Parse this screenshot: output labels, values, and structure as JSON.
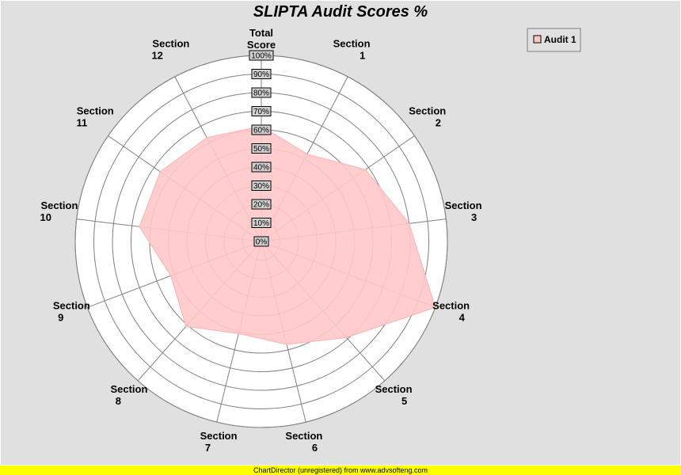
{
  "chart_data": {
    "type": "radar",
    "title": "SLIPTA Audit Scores %",
    "categories": [
      [
        "Total",
        "Score"
      ],
      [
        "Section",
        "1"
      ],
      [
        "Section",
        "2"
      ],
      [
        "Section",
        "3"
      ],
      [
        "Section",
        "4"
      ],
      [
        "Section",
        "5"
      ],
      [
        "Section",
        "6"
      ],
      [
        "Section",
        "7"
      ],
      [
        "Section",
        "8"
      ],
      [
        "Section",
        "9"
      ],
      [
        "Section",
        "10"
      ],
      [
        "Section",
        "11"
      ],
      [
        "Section",
        "12"
      ]
    ],
    "radial_ticks": [
      "0%",
      "10%",
      "20%",
      "30%",
      "40%",
      "50%",
      "60%",
      "70%",
      "80%",
      "90%",
      "100%"
    ],
    "rlim": [
      0,
      100
    ],
    "series": [
      {
        "name": "Audit 1",
        "values": [
          62,
          53,
          68,
          80,
          100,
          69,
          57,
          51,
          61,
          52,
          66,
          66,
          63
        ]
      }
    ],
    "legend": "top-right",
    "colors": {
      "fill": "#ffc8c8",
      "edge": "#ffb0b0",
      "grid": "#808080",
      "plot_bg": "#ffffff",
      "background": "#e0e0e0",
      "tick_bg": "#d0d0d0"
    }
  },
  "footer": "ChartDirector (unregistered) from www.advsofteng.com"
}
